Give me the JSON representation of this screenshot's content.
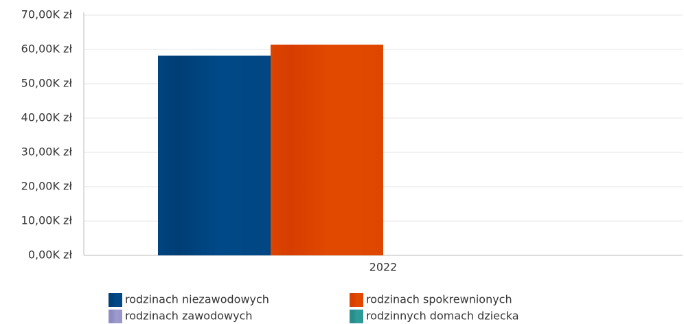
{
  "chart_data": {
    "type": "bar",
    "categories": [
      "2022"
    ],
    "series": [
      {
        "name": "rodzinach niezawodowych",
        "color": "#003366",
        "values": [
          58200
        ]
      },
      {
        "name": "rodzinach spokrewnionych",
        "color": "#cc3300",
        "values": [
          61400
        ]
      },
      {
        "name": "rodzinach zawodowych",
        "color": "#7a78b0",
        "values": [
          null
        ]
      },
      {
        "name": "rodzinnych domach dziecka",
        "color": "#1f7a78",
        "values": [
          null
        ]
      }
    ],
    "ylim": [
      0,
      70000
    ],
    "yticks": [
      {
        "value": 0,
        "label": "0,00K zł"
      },
      {
        "value": 10000,
        "label": "10,00K zł"
      },
      {
        "value": 20000,
        "label": "20,00K zł"
      },
      {
        "value": 30000,
        "label": "30,00K zł"
      },
      {
        "value": 40000,
        "label": "40,00K zł"
      },
      {
        "value": 50000,
        "label": "50,00K zł"
      },
      {
        "value": 60000,
        "label": "60,00K zł"
      },
      {
        "value": 70000,
        "label": "70,00K zł"
      }
    ],
    "grid": true
  }
}
